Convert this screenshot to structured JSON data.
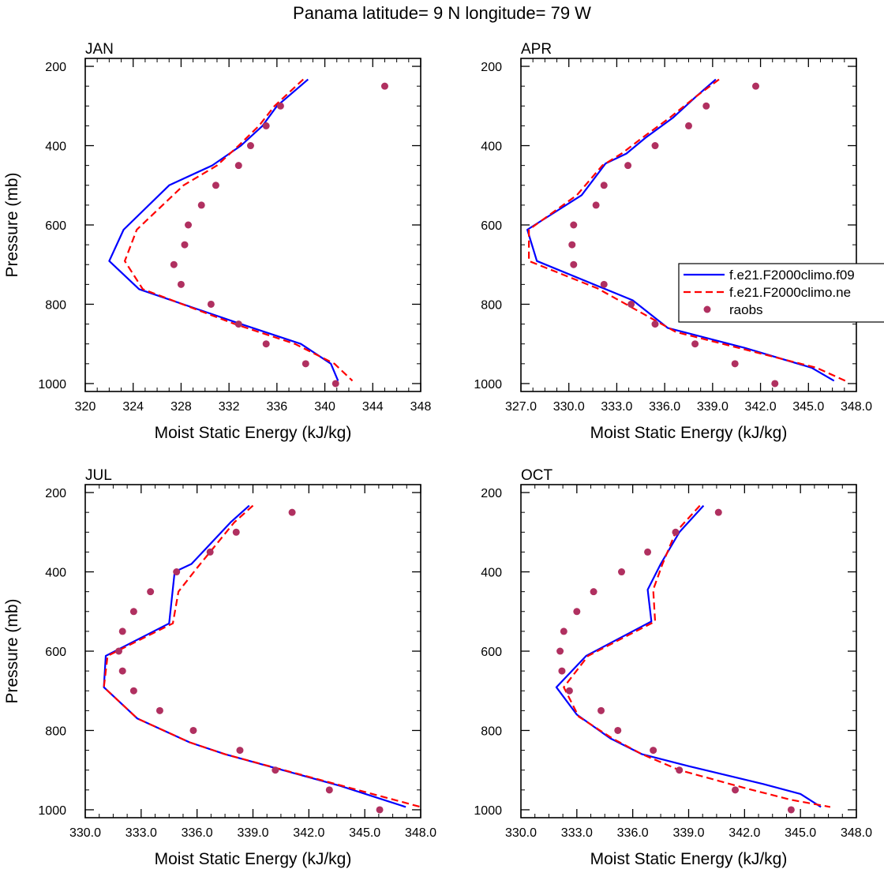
{
  "figure": {
    "title": "Panama  latitude= 9 N longitude= 79 W"
  },
  "chart_data": [
    {
      "type": "line",
      "title": "JAN",
      "xlabel": "Moist Static Energy (kJ/kg)",
      "ylabel": "Pressure (mb)",
      "xlim": [
        320,
        348
      ],
      "ylim": [
        1000,
        200
      ],
      "y_inverted": true,
      "xticks": [
        320,
        324,
        328,
        332,
        336,
        340,
        344,
        348
      ],
      "xtick_labels": [
        "320",
        "324",
        "328",
        "332",
        "336",
        "340",
        "344",
        "348"
      ],
      "yticks": [
        200,
        400,
        600,
        800,
        1000
      ],
      "ytick_labels": [
        "200",
        "400",
        "600",
        "800",
        "1000"
      ],
      "series": [
        {
          "name": "f.e21.F2000climo.f09",
          "color": "#0000ff",
          "style": "solid",
          "x": [
            338.6,
            336.0,
            334.8,
            333.0,
            330.6,
            327.0,
            323.2,
            322.0,
            324.5,
            333.0,
            338.0,
            340.5,
            341.1
          ],
          "y": [
            233,
            300,
            350,
            400,
            450,
            500,
            612,
            691,
            762,
            850,
            900,
            950,
            993
          ]
        },
        {
          "name": "f.e21.F2000climo.ne",
          "color": "#ff0000",
          "style": "dashed",
          "x": [
            338.2,
            335.8,
            334.5,
            332.8,
            331.0,
            328.2,
            324.3,
            323.3,
            324.8,
            332.5,
            337.5,
            340.8,
            342.3
          ],
          "y": [
            233,
            300,
            350,
            400,
            450,
            500,
            612,
            691,
            762,
            850,
            900,
            950,
            993
          ]
        },
        {
          "name": "raobs",
          "color": "#b03060",
          "style": "markers",
          "x": [
            345.0,
            336.3,
            335.1,
            333.8,
            332.8,
            330.9,
            329.7,
            328.6,
            328.3,
            327.4,
            328.0,
            330.5,
            332.8,
            335.1,
            338.4,
            340.9
          ],
          "y": [
            250,
            300,
            350,
            400,
            450,
            500,
            550,
            600,
            650,
            700,
            750,
            800,
            850,
            900,
            950,
            1000
          ]
        }
      ]
    },
    {
      "type": "line",
      "title": "APR",
      "xlabel": "Moist Static Energy (kJ/kg)",
      "ylabel": "",
      "xlim": [
        327.0,
        348.0
      ],
      "ylim": [
        1000,
        200
      ],
      "y_inverted": true,
      "xticks": [
        327,
        330,
        333,
        336,
        339,
        342,
        345,
        348
      ],
      "xtick_labels": [
        "327.0",
        "330.0",
        "333.0",
        "336.0",
        "339.0",
        "342.0",
        "345.0",
        "348.0"
      ],
      "yticks": [
        200,
        400,
        600,
        800,
        1000
      ],
      "ytick_labels": [
        "200",
        "400",
        "600",
        "800",
        "1000"
      ],
      "series": [
        {
          "name": "f.e21.F2000climo.f09",
          "color": "#0000ff",
          "style": "solid",
          "x": [
            339.2,
            338.0,
            336.5,
            334.8,
            333.6,
            332.3,
            330.8,
            327.4,
            328.0,
            334.0,
            336.2,
            341.0,
            345.2,
            346.6
          ],
          "y": [
            233,
            275,
            330,
            380,
            420,
            445,
            525,
            612,
            691,
            790,
            860,
            910,
            960,
            993
          ]
        },
        {
          "name": "f.e21.F2000climo.ne",
          "color": "#ff0000",
          "style": "dashed",
          "x": [
            339.4,
            338.0,
            336.3,
            334.6,
            333.3,
            332.1,
            330.5,
            327.5,
            327.5,
            331.8,
            336.7,
            341.6,
            345.5,
            347.3
          ],
          "y": [
            233,
            275,
            330,
            380,
            420,
            450,
            525,
            612,
            691,
            760,
            870,
            920,
            960,
            993
          ]
        },
        {
          "name": "raobs",
          "color": "#b03060",
          "style": "markers",
          "x": [
            341.7,
            338.6,
            337.5,
            335.4,
            333.7,
            332.2,
            331.7,
            330.3,
            330.2,
            330.3,
            332.2,
            333.9,
            335.4,
            337.9,
            340.4,
            342.9
          ],
          "y": [
            250,
            300,
            350,
            400,
            450,
            500,
            550,
            600,
            650,
            700,
            750,
            800,
            850,
            900,
            950,
            1000
          ]
        }
      ],
      "legend": {
        "placement": "right",
        "entries": [
          "f.e21.F2000climo.f09",
          "f.e21.F2000climo.ne",
          "raobs"
        ]
      }
    },
    {
      "type": "line",
      "title": "JUL",
      "xlabel": "Moist Static Energy (kJ/kg)",
      "ylabel": "Pressure (mb)",
      "xlim": [
        330.0,
        348.0
      ],
      "ylim": [
        1000,
        200
      ],
      "y_inverted": true,
      "xticks": [
        330,
        333,
        336,
        339,
        342,
        345,
        348
      ],
      "xtick_labels": [
        "330.0",
        "333.0",
        "336.0",
        "339.0",
        "342.0",
        "345.0",
        "348.0"
      ],
      "yticks": [
        200,
        400,
        600,
        800,
        1000
      ],
      "ytick_labels": [
        "200",
        "400",
        "600",
        "800",
        "1000"
      ],
      "series": [
        {
          "name": "f.e21.F2000climo.f09",
          "color": "#0000ff",
          "style": "solid",
          "x": [
            338.8,
            337.8,
            335.7,
            334.8,
            334.5,
            331.1,
            331.0,
            332.8,
            335.6,
            337.5,
            343.7,
            347.2
          ],
          "y": [
            233,
            275,
            380,
            400,
            530,
            612,
            691,
            770,
            830,
            860,
            940,
            993
          ]
        },
        {
          "name": "f.e21.F2000climo.ne",
          "color": "#ff0000",
          "style": "dashed",
          "x": [
            339.0,
            338.0,
            336.0,
            335.0,
            334.7,
            331.2,
            331.0,
            332.8,
            335.6,
            337.5,
            345.0,
            348.0
          ],
          "y": [
            233,
            275,
            390,
            450,
            530,
            612,
            691,
            770,
            830,
            860,
            955,
            993
          ]
        },
        {
          "name": "raobs",
          "color": "#b03060",
          "style": "markers",
          "x": [
            341.1,
            338.1,
            336.7,
            334.9,
            333.5,
            332.6,
            332.0,
            331.8,
            332.0,
            332.6,
            334.0,
            335.8,
            338.3,
            340.2,
            343.1,
            345.8
          ],
          "y": [
            250,
            300,
            350,
            400,
            450,
            500,
            550,
            600,
            650,
            700,
            750,
            800,
            850,
            900,
            950,
            1000
          ]
        }
      ]
    },
    {
      "type": "line",
      "title": "OCT",
      "xlabel": "Moist Static Energy (kJ/kg)",
      "ylabel": "",
      "xlim": [
        330.0,
        348.0
      ],
      "ylim": [
        1000,
        200
      ],
      "y_inverted": true,
      "xticks": [
        330,
        333,
        336,
        339,
        342,
        345,
        348
      ],
      "xtick_labels": [
        "330.0",
        "333.0",
        "336.0",
        "339.0",
        "342.0",
        "345.0",
        "348.0"
      ],
      "yticks": [
        200,
        400,
        600,
        800,
        1000
      ],
      "ytick_labels": [
        "200",
        "400",
        "600",
        "800",
        "1000"
      ],
      "series": [
        {
          "name": "f.e21.F2000climo.f09",
          "color": "#0000ff",
          "style": "solid",
          "x": [
            339.8,
            338.5,
            337.5,
            336.8,
            337.0,
            333.5,
            331.9,
            333.0,
            334.8,
            336.5,
            339.0,
            343.0,
            345.0,
            346.1
          ],
          "y": [
            233,
            300,
            380,
            445,
            525,
            612,
            691,
            760,
            820,
            860,
            890,
            935,
            960,
            993
          ]
        },
        {
          "name": "f.e21.F2000climo.ne",
          "color": "#ff0000",
          "style": "dashed",
          "x": [
            339.6,
            338.3,
            337.6,
            337.1,
            337.2,
            333.6,
            332.3,
            333.1,
            334.9,
            336.5,
            338.5,
            342.0,
            344.5,
            346.6
          ],
          "y": [
            233,
            300,
            380,
            445,
            525,
            612,
            691,
            765,
            820,
            860,
            900,
            945,
            975,
            993
          ]
        },
        {
          "name": "raobs",
          "color": "#b03060",
          "style": "markers",
          "x": [
            340.6,
            338.3,
            336.8,
            335.4,
            333.9,
            333.0,
            332.3,
            332.1,
            332.2,
            332.6,
            334.3,
            335.2,
            337.1,
            338.5,
            341.5,
            344.5
          ],
          "y": [
            250,
            300,
            350,
            400,
            450,
            500,
            550,
            600,
            650,
            700,
            750,
            800,
            850,
            900,
            950,
            1000
          ]
        }
      ]
    }
  ]
}
